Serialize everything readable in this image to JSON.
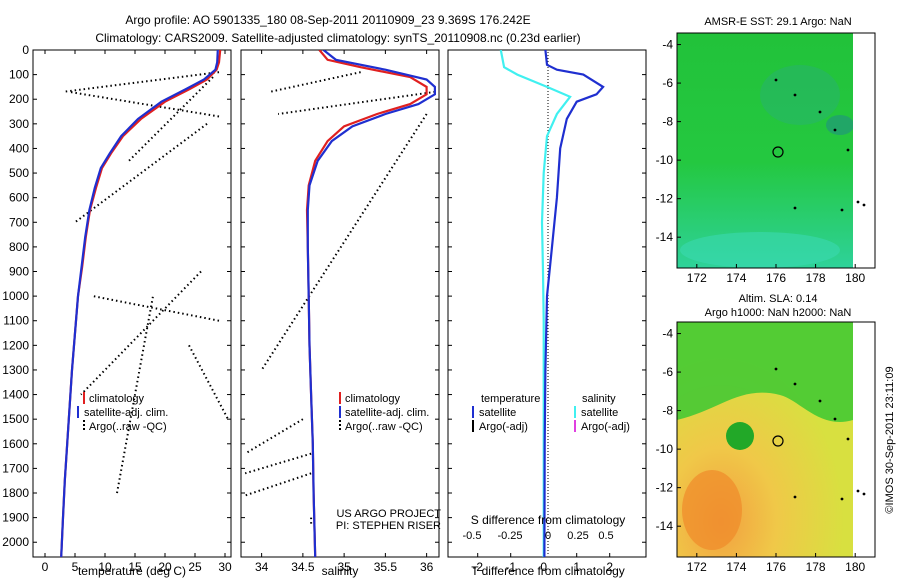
{
  "header": {
    "title_line1": "Argo profile: AO 5901335_180 08-Sep-2011 20110909_23 9.369S 176.242E",
    "title_line2": "Climatology: CARS2009. Satellite-adjusted climatology: synTS_20110908.nc (0.23d earlier)"
  },
  "credits": {
    "project": "US ARGO PROJECT",
    "pi": "PI: STEPHEN RISER",
    "imos": "©IMOS 30-Sep-2011 23:11:09"
  },
  "colors": {
    "climatology": "#e02020",
    "satellite": "#1f2fd0",
    "argo": "#000000",
    "salinity_satellite": "#40f0f0",
    "salinity_argo": "#e040e0"
  },
  "depth_axis": {
    "ticks": [
      0,
      100,
      200,
      300,
      400,
      500,
      600,
      700,
      800,
      900,
      1000,
      1100,
      1200,
      1300,
      1400,
      1500,
      1600,
      1700,
      1800,
      1900,
      2000
    ],
    "ylim": [
      0,
      2060
    ]
  },
  "temperature_panel": {
    "xlabel": "temperature (deg C)",
    "xticks": [
      0,
      5,
      10,
      15,
      20,
      25,
      30
    ],
    "xlim": [
      -2,
      31
    ],
    "legend": [
      "climatology",
      "satellite-adj. clim.",
      "Argo(..raw -QC)"
    ]
  },
  "salinity_panel": {
    "xlabel": "salinity",
    "xticks": [
      34,
      34.5,
      35,
      35.5,
      36
    ],
    "xlim": [
      33.75,
      36.15
    ],
    "legend": [
      "climatology",
      "satellite-adj. clim.",
      "Argo(..raw -QC)"
    ]
  },
  "difference_panel": {
    "top_label": "S difference from climatology",
    "xlabel": "T difference from climatology",
    "top_ticks": [
      "-0.5",
      "-0.25",
      "0",
      "0.25",
      "0.5"
    ],
    "bottom_ticks": [
      "-2",
      "-1",
      "0",
      "1",
      "2"
    ],
    "xlim": [
      -2.9,
      3.1
    ],
    "legend_headers": [
      "temperature",
      "salinity"
    ],
    "legend_temperature": [
      "satellite",
      "Argo(-adj)"
    ],
    "legend_salinity": [
      "satellite",
      "Argo(-adj)"
    ]
  },
  "map_top": {
    "title": "AMSR-E SST: 29.1  Argo: NaN",
    "xticks": [
      172,
      174,
      176,
      178,
      180
    ],
    "yticks": [
      -4,
      -6,
      -8,
      -10,
      -12,
      -14
    ]
  },
  "map_bottom": {
    "title_line1": "Altim. SLA: 0.14",
    "title_line2": "Argo h1000: NaN h2000: NaN",
    "xticks": [
      172,
      174,
      176,
      178,
      180
    ],
    "yticks": [
      -4,
      -6,
      -8,
      -10,
      -12,
      -14
    ]
  },
  "chart_data": [
    {
      "type": "line",
      "xlabel": "temperature (deg C)",
      "ylabel": "",
      "xlim": [
        -2,
        31
      ],
      "ylim": [
        2060,
        0
      ],
      "series": [
        {
          "name": "climatology",
          "points": [
            [
              29.2,
              0
            ],
            [
              29.0,
              50
            ],
            [
              28.6,
              80
            ],
            [
              27,
              120
            ],
            [
              24,
              160
            ],
            [
              20,
              210
            ],
            [
              16,
              280
            ],
            [
              13,
              350
            ],
            [
              11,
              420
            ],
            [
              9.5,
              480
            ],
            [
              8.5,
              560
            ],
            [
              7.5,
              650
            ],
            [
              6.8,
              760
            ],
            [
              6.2,
              880
            ],
            [
              5.5,
              1000
            ],
            [
              5,
              1150
            ],
            [
              4.5,
              1300
            ],
            [
              4.1,
              1450
            ],
            [
              3.7,
              1600
            ],
            [
              3.3,
              1750
            ],
            [
              3,
              1900
            ],
            [
              2.7,
              2060
            ]
          ]
        },
        {
          "name": "satellite-adj. clim.",
          "points": [
            [
              28.8,
              0
            ],
            [
              28.7,
              50
            ],
            [
              28.4,
              80
            ],
            [
              26.5,
              120
            ],
            [
              23.4,
              160
            ],
            [
              19.4,
              210
            ],
            [
              15.5,
              280
            ],
            [
              12.7,
              350
            ],
            [
              10.8,
              420
            ],
            [
              9.3,
              480
            ],
            [
              8.3,
              560
            ],
            [
              7.4,
              650
            ],
            [
              6.7,
              760
            ],
            [
              6.1,
              880
            ],
            [
              5.5,
              1000
            ],
            [
              5,
              1150
            ],
            [
              4.5,
              1300
            ],
            [
              4.1,
              1450
            ],
            [
              3.7,
              1600
            ],
            [
              3.3,
              1750
            ],
            [
              3,
              1900
            ],
            [
              2.7,
              2060
            ]
          ]
        },
        {
          "name": "Argo(..raw -QC)",
          "points": [
            [
              29,
              90
            ],
            [
              3,
              170
            ],
            [
              29,
              270
            ],
            [
              4,
              170
            ],
            [
              28,
              110
            ],
            [
              14,
              450
            ],
            [
              27,
              300
            ],
            [
              5,
              700
            ],
            [
              29,
              1100
            ],
            [
              8,
              1000
            ],
            [
              26,
              900
            ],
            [
              6,
              1400
            ],
            [
              24,
              1200
            ],
            [
              30.5,
              1500
            ],
            [
              12,
              1800
            ],
            [
              18,
              1000
            ],
            [
              19,
              1740
            ]
          ]
        }
      ]
    },
    {
      "type": "line",
      "xlabel": "salinity",
      "ylabel": "",
      "xlim": [
        33.75,
        36.15
      ],
      "ylim": [
        2060,
        0
      ],
      "series": [
        {
          "name": "climatology",
          "points": [
            [
              34.7,
              0
            ],
            [
              34.8,
              40
            ],
            [
              35.2,
              70
            ],
            [
              35.8,
              110
            ],
            [
              36.0,
              150
            ],
            [
              36.0,
              180
            ],
            [
              35.8,
              220
            ],
            [
              35.4,
              260
            ],
            [
              35.0,
              310
            ],
            [
              34.8,
              370
            ],
            [
              34.65,
              450
            ],
            [
              34.57,
              550
            ],
            [
              34.55,
              650
            ],
            [
              34.56,
              800
            ],
            [
              34.57,
              1000
            ],
            [
              34.58,
              1200
            ],
            [
              34.6,
              1400
            ],
            [
              34.62,
              1600
            ],
            [
              34.63,
              1800
            ],
            [
              34.65,
              2060
            ]
          ]
        },
        {
          "name": "satellite-adj. clim.",
          "points": [
            [
              34.75,
              0
            ],
            [
              34.9,
              40
            ],
            [
              35.5,
              80
            ],
            [
              36.0,
              120
            ],
            [
              36.1,
              150
            ],
            [
              36.1,
              180
            ],
            [
              35.9,
              220
            ],
            [
              35.5,
              260
            ],
            [
              35.1,
              310
            ],
            [
              34.85,
              370
            ],
            [
              34.68,
              450
            ],
            [
              34.58,
              550
            ],
            [
              34.56,
              650
            ],
            [
              34.56,
              800
            ],
            [
              34.57,
              1000
            ],
            [
              34.58,
              1200
            ],
            [
              34.6,
              1400
            ],
            [
              34.62,
              1600
            ],
            [
              34.63,
              1800
            ],
            [
              34.65,
              2060
            ]
          ]
        },
        {
          "name": "Argo(..raw -QC)",
          "points": [
            [
              35.2,
              90
            ],
            [
              34.1,
              170
            ],
            [
              36.1,
              170
            ],
            [
              34.2,
              260
            ],
            [
              36.0,
              260
            ],
            [
              34.0,
              1300
            ],
            [
              34.5,
              1500
            ],
            [
              33.8,
              1640
            ],
            [
              34.6,
              1640
            ],
            [
              33.8,
              1720
            ],
            [
              34.6,
              1720
            ],
            [
              33.8,
              1810
            ],
            [
              34.6,
              1900
            ],
            [
              34.6,
              1930
            ]
          ]
        }
      ]
    },
    {
      "type": "line",
      "xlabel": "T difference from climatology",
      "ylabel": "",
      "xlim": [
        -2.9,
        3.1
      ],
      "ylim": [
        2060,
        0
      ],
      "series": [
        {
          "name": "temperature satellite",
          "points": [
            [
              0.05,
              0
            ],
            [
              0.1,
              60
            ],
            [
              0.4,
              80
            ],
            [
              1.2,
              100
            ],
            [
              1.8,
              150
            ],
            [
              1.6,
              180
            ],
            [
              1.0,
              210
            ],
            [
              0.7,
              280
            ],
            [
              0.5,
              400
            ],
            [
              0.4,
              600
            ],
            [
              0.25,
              800
            ],
            [
              0.1,
              1000
            ],
            [
              0.05,
              1300
            ],
            [
              0.03,
              1600
            ],
            [
              0.02,
              2060
            ]
          ]
        },
        {
          "name": "salinity satellite",
          "points": [
            [
              -1.3,
              0
            ],
            [
              -1.2,
              70
            ],
            [
              -0.8,
              100
            ],
            [
              0.1,
              150
            ],
            [
              0.8,
              190
            ],
            [
              0.4,
              260
            ],
            [
              0.1,
              350
            ],
            [
              0,
              500
            ],
            [
              -0.05,
              700
            ],
            [
              -0.02,
              900
            ],
            [
              0,
              1100
            ],
            [
              0,
              1400
            ],
            [
              0,
              2060
            ]
          ]
        }
      ]
    }
  ]
}
